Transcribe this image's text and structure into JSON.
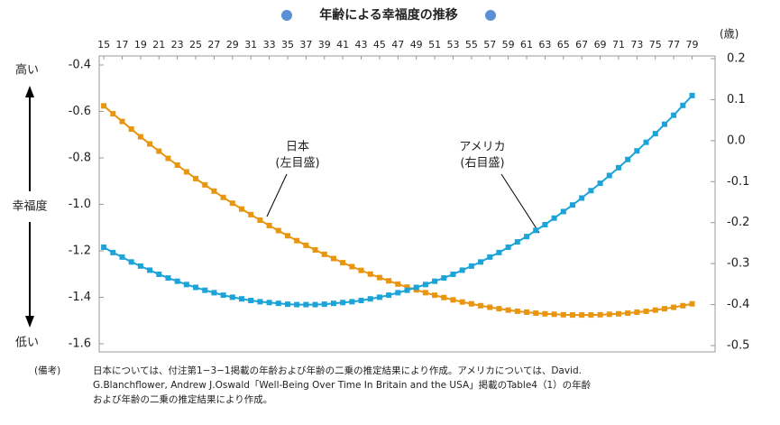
{
  "chart_data": {
    "type": "line",
    "title": "年齢による幸福度の推移",
    "x_unit": "(歳)",
    "y_label_top": "高い",
    "y_label": "幸福度",
    "y_label_bottom": "低い",
    "x": [
      15,
      16,
      17,
      18,
      19,
      20,
      21,
      22,
      23,
      24,
      25,
      26,
      27,
      28,
      29,
      30,
      31,
      32,
      33,
      34,
      35,
      36,
      37,
      38,
      39,
      40,
      41,
      42,
      43,
      44,
      45,
      46,
      47,
      48,
      49,
      50,
      51,
      52,
      53,
      54,
      55,
      56,
      57,
      58,
      59,
      60,
      61,
      62,
      63,
      64,
      65,
      66,
      67,
      68,
      69,
      70,
      71,
      72,
      73,
      74,
      75,
      76,
      77,
      78,
      79
    ],
    "xlim": [
      14.5,
      81.5
    ],
    "xticks": [
      15,
      17,
      19,
      21,
      23,
      25,
      27,
      29,
      31,
      33,
      35,
      37,
      39,
      41,
      43,
      45,
      47,
      49,
      51,
      53,
      55,
      57,
      59,
      61,
      63,
      65,
      67,
      69,
      71,
      73,
      75,
      77,
      79
    ],
    "ylim": [
      -1.6,
      -0.4
    ],
    "yticks": [
      -0.4,
      -0.6,
      -0.8,
      {
        "value": -1,
        "label": "-1.0"
      },
      -1.2,
      -1.4,
      -1.6
    ],
    "y2lim": [
      -0.5,
      0.2
    ],
    "y2ticks": [
      0.2,
      0.1,
      {
        "value": 0,
        "label": "0.0"
      },
      -0.1,
      -0.2,
      -0.3,
      -0.4,
      -0.5
    ],
    "series": [
      {
        "name": "日本",
        "note": "(左目盛)",
        "color": "#e8950f",
        "axis": "y",
        "values": [
          -0.576,
          -0.61,
          -0.643,
          -0.676,
          -0.709,
          -0.74,
          -0.771,
          -0.802,
          -0.831,
          -0.86,
          -0.889,
          -0.916,
          -0.943,
          -0.97,
          -0.995,
          -1.02,
          -1.044,
          -1.068,
          -1.091,
          -1.113,
          -1.135,
          -1.156,
          -1.176,
          -1.196,
          -1.215,
          -1.233,
          -1.251,
          -1.268,
          -1.284,
          -1.3,
          -1.315,
          -1.329,
          -1.343,
          -1.356,
          -1.368,
          -1.38,
          -1.391,
          -1.401,
          -1.411,
          -1.42,
          -1.428,
          -1.436,
          -1.443,
          -1.449,
          -1.455,
          -1.46,
          -1.464,
          -1.468,
          -1.471,
          -1.473,
          -1.475,
          -1.476,
          -1.476,
          -1.476,
          -1.475,
          -1.473,
          -1.471,
          -1.468,
          -1.464,
          -1.46,
          -1.455,
          -1.449,
          -1.443,
          -1.436,
          -1.428
        ]
      },
      {
        "name": "アメリカ",
        "note": "(右目盛)",
        "color": "#1ca4d8",
        "axis": "y2",
        "values": [
          -0.26,
          -0.273,
          -0.284,
          -0.296,
          -0.306,
          -0.316,
          -0.326,
          -0.335,
          -0.343,
          -0.351,
          -0.358,
          -0.365,
          -0.371,
          -0.377,
          -0.382,
          -0.386,
          -0.39,
          -0.393,
          -0.395,
          -0.397,
          -0.399,
          -0.4,
          -0.4,
          -0.4,
          -0.399,
          -0.397,
          -0.395,
          -0.393,
          -0.39,
          -0.386,
          -0.382,
          -0.377,
          -0.371,
          -0.365,
          -0.358,
          -0.351,
          -0.343,
          -0.335,
          -0.326,
          -0.316,
          -0.306,
          -0.296,
          -0.284,
          -0.273,
          -0.26,
          -0.247,
          -0.234,
          -0.219,
          -0.205,
          -0.189,
          -0.173,
          -0.157,
          -0.14,
          -0.122,
          -0.104,
          -0.085,
          -0.066,
          -0.046,
          -0.025,
          -0.004,
          0.017,
          0.04,
          0.062,
          0.086,
          0.11
        ]
      }
    ],
    "note_label": "(備考)",
    "notes": [
      "日本については、付注第1−3−1掲載の年齢および年齢の二乗の推定結果により作成。アメリカについては、David.",
      "G.Blanchflower, Andrew J.Oswald「Well-Being Over Time In Britain and the USA」掲載のTable4（1）の年齢",
      "および年齢の二乗の推定結果により作成。"
    ]
  }
}
